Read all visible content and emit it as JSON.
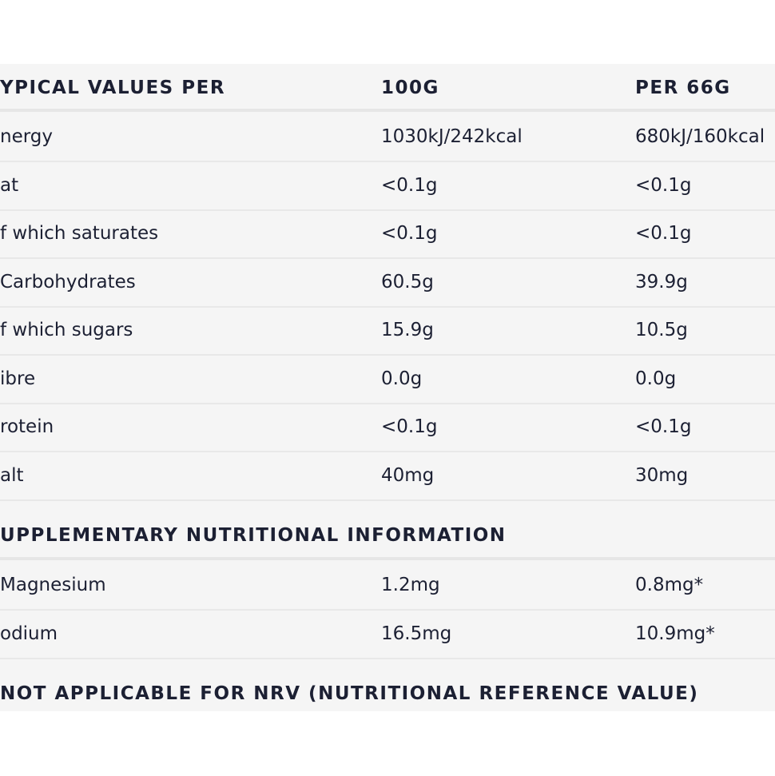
{
  "table": {
    "header": [
      "YPICAL VALUES PER",
      "100G",
      "PER 66G"
    ],
    "rows": [
      [
        "nergy",
        "1030kJ/242kcal",
        "680kJ/160kcal"
      ],
      [
        "at",
        "<0.1g",
        "<0.1g"
      ],
      [
        "f which saturates",
        "<0.1g",
        "<0.1g"
      ],
      [
        "Carbohydrates",
        "60.5g",
        "39.9g"
      ],
      [
        "f which sugars",
        "15.9g",
        "10.5g"
      ],
      [
        "ibre",
        "0.0g",
        "0.0g"
      ],
      [
        "rotein",
        "<0.1g",
        "<0.1g"
      ],
      [
        "alt",
        "40mg",
        "30mg"
      ]
    ]
  },
  "supplementary": {
    "title": "UPPLEMENTARY NUTRITIONAL INFORMATION",
    "rows": [
      [
        "Magnesium",
        "1.2mg",
        "0.8mg*"
      ],
      [
        "odium",
        "16.5mg",
        "10.9mg*"
      ]
    ]
  },
  "footnote": "NOT APPLICABLE FOR NRV (NUTRITIONAL REFERENCE VALUE)"
}
